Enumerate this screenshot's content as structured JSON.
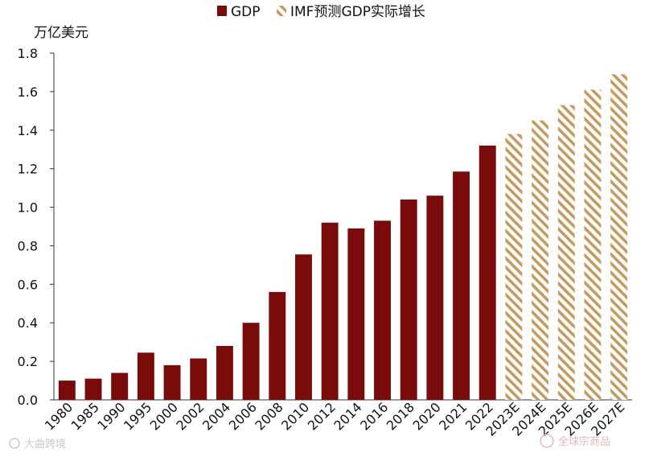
{
  "chart_data": {
    "type": "bar",
    "unit_label": "万亿美元",
    "categories": [
      "1980",
      "1985",
      "1990",
      "1995",
      "2000",
      "2002",
      "2004",
      "2006",
      "2008",
      "2010",
      "2012",
      "2014",
      "2016",
      "2018",
      "2020",
      "2021",
      "2022",
      "2023E",
      "2024E",
      "2025E",
      "2026E",
      "2027E"
    ],
    "series": [
      {
        "name": "GDP",
        "color": "#7a0b0b",
        "values": [
          0.1,
          0.11,
          0.14,
          0.245,
          0.18,
          0.215,
          0.28,
          0.4,
          0.56,
          0.755,
          0.92,
          0.89,
          0.93,
          1.04,
          1.06,
          1.185,
          1.32,
          null,
          null,
          null,
          null,
          null
        ]
      },
      {
        "name": "IMF预测GDP实际增长",
        "color": "#c49a5e",
        "pattern": "diagonal-hatch",
        "values": [
          null,
          null,
          null,
          null,
          null,
          null,
          null,
          null,
          null,
          null,
          null,
          null,
          null,
          null,
          null,
          null,
          null,
          1.38,
          1.45,
          1.53,
          1.61,
          1.69
        ]
      }
    ],
    "ylim": [
      0,
      1.8
    ],
    "yticks": [
      "0.0",
      "0.2",
      "0.4",
      "0.6",
      "0.8",
      "1.0",
      "1.2",
      "1.4",
      "1.6",
      "1.8"
    ],
    "grid": false,
    "legend_position": "top"
  },
  "watermarks": {
    "left": "大曲跨境",
    "right": "全球宗商品"
  }
}
